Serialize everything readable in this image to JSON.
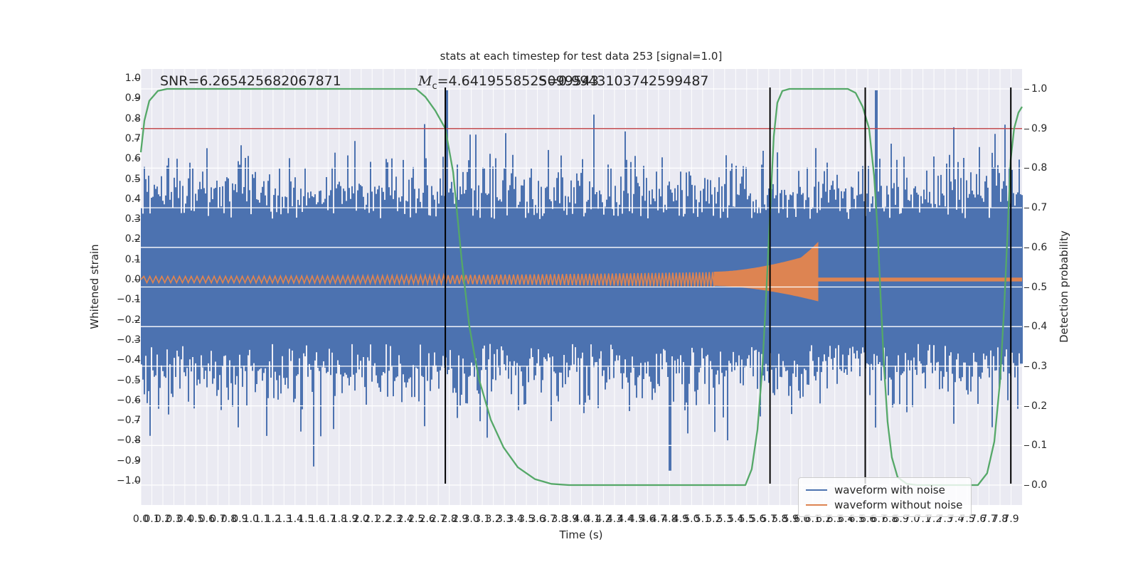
{
  "figure": {
    "title": "stats at each timestep for test data 253 [signal=1.0]",
    "xlabel": "Time (s)",
    "ylabel_left": "Whitened strain",
    "ylabel_right": "Detection probability"
  },
  "annotations": {
    "snr": "SNR=6.265425682067871",
    "mc_prefix": "M",
    "mc_sub": "c",
    "mc_value": "=4.6419558525099543",
    "score": "S=0.9943103742599487"
  },
  "legend": {
    "items": [
      {
        "label": "waveform with noise",
        "color": "#4C72B0"
      },
      {
        "label": "waveform without noise",
        "color": "#DD8452"
      }
    ]
  },
  "colors": {
    "axes_background": "#EAEAF2",
    "grid": "#FFFFFF",
    "noise": "#4C72B0",
    "signal": "#DD8452",
    "probability": "#55A868",
    "threshold": "#C44E52",
    "event_line": "#000000",
    "text": "#262626"
  },
  "axes": {
    "xlim": [
      0.0,
      8.0
    ],
    "ylim_left": [
      -1.05,
      1.05
    ],
    "ylim_right": [
      -0.05,
      1.05
    ],
    "yticks_left": [
      "1.0",
      "0.9",
      "0.8",
      "0.7",
      "0.6",
      "0.5",
      "0.4",
      "0.3",
      "0.2",
      "0.1",
      "0.0",
      "−0.1",
      "−0.2",
      "−0.3",
      "−0.4",
      "−0.5",
      "−0.6",
      "−0.7",
      "−0.8",
      "−0.9",
      "−1.0"
    ],
    "yticks_right": [
      "1.0",
      "0.9",
      "0.8",
      "0.7",
      "0.6",
      "0.5",
      "0.4",
      "0.3",
      "0.2",
      "0.1",
      "0.0"
    ],
    "xticks": [
      "0.0",
      "0.1",
      "0.2",
      "0.3",
      "0.4",
      "0.5",
      "0.6",
      "0.7",
      "0.8",
      "0.9",
      "1.0",
      "1.1",
      "1.2",
      "1.3",
      "1.4",
      "1.5",
      "1.6",
      "1.7",
      "1.8",
      "1.9",
      "2.0",
      "2.1",
      "2.2",
      "2.3",
      "2.4",
      "2.5",
      "2.6",
      "2.7",
      "2.8",
      "2.9",
      "3.0",
      "3.1",
      "3.2",
      "3.3",
      "3.4",
      "3.5",
      "3.6",
      "3.7",
      "3.8",
      "3.9",
      "4.0",
      "4.1",
      "4.2",
      "4.3",
      "4.4",
      "4.5",
      "4.6",
      "4.7",
      "4.8",
      "4.9",
      "5.0",
      "5.1",
      "5.2",
      "5.3",
      "5.4",
      "5.5",
      "5.6",
      "5.7",
      "5.8",
      "5.9",
      "6.0",
      "6.1",
      "6.2",
      "6.3",
      "6.4",
      "6.5",
      "6.6",
      "6.7",
      "6.8",
      "6.9",
      "7.0",
      "7.1",
      "7.2",
      "7.3",
      "7.4",
      "7.5",
      "7.6",
      "7.7",
      "7.8",
      "7.9"
    ]
  },
  "chart_data": {
    "type": "line",
    "xlabel": "Time (s)",
    "series": [
      {
        "name": "waveform with noise",
        "kind": "noise",
        "color": "#4C72B0",
        "seed": 253,
        "core_amplitude": 0.35,
        "typical_amplitude": 0.55,
        "max_amplitude": 0.97,
        "forced_spikes": [
          {
            "t": 2.78,
            "side": "top",
            "amp": 0.94
          },
          {
            "t": 4.8,
            "side": "bottom",
            "amp": 0.95
          },
          {
            "t": 6.68,
            "side": "top",
            "amp": 0.94
          }
        ]
      },
      {
        "name": "waveform without noise",
        "kind": "chirp",
        "color": "#DD8452",
        "t_start": 0.0,
        "t_merger": 6.12,
        "amp_start": 0.016,
        "amp_peak": 0.17,
        "amp_post_merger": 0.009
      },
      {
        "name": "detection probability",
        "kind": "line",
        "axis": "right",
        "color": "#55A868",
        "t": [
          0.0,
          0.032,
          0.077,
          0.155,
          0.239,
          2.499,
          2.583,
          2.673,
          2.764,
          2.835,
          2.912,
          2.983,
          3.067,
          3.177,
          3.293,
          3.422,
          3.577,
          3.726,
          3.887,
          5.488,
          5.546,
          5.598,
          5.643,
          5.681,
          5.714,
          5.746,
          5.778,
          5.824,
          5.888,
          6.418,
          6.489,
          6.553,
          6.611,
          6.657,
          6.689,
          6.715,
          6.747,
          6.779,
          6.818,
          6.87,
          6.954,
          7.05,
          7.599,
          7.683,
          7.748,
          7.799,
          7.838,
          7.87,
          7.896,
          7.928,
          7.967,
          8.0
        ],
        "p": [
          0.84,
          0.92,
          0.97,
          0.995,
          1.0,
          1.0,
          0.98,
          0.945,
          0.9,
          0.79,
          0.57,
          0.4,
          0.27,
          0.165,
          0.095,
          0.045,
          0.015,
          0.003,
          0.0,
          0.0,
          0.04,
          0.14,
          0.3,
          0.5,
          0.7,
          0.88,
          0.965,
          0.995,
          1.0,
          1.0,
          0.99,
          0.955,
          0.9,
          0.78,
          0.64,
          0.48,
          0.3,
          0.16,
          0.07,
          0.02,
          0.003,
          0.0,
          0.0,
          0.03,
          0.11,
          0.26,
          0.45,
          0.65,
          0.82,
          0.9,
          0.94,
          0.955
        ]
      }
    ],
    "threshold_line": {
      "axis": "right",
      "value": 0.9,
      "color": "#C44E52"
    },
    "event_lines": {
      "times": [
        2.764,
        5.712,
        6.576,
        7.898
      ],
      "color": "#000000"
    }
  }
}
